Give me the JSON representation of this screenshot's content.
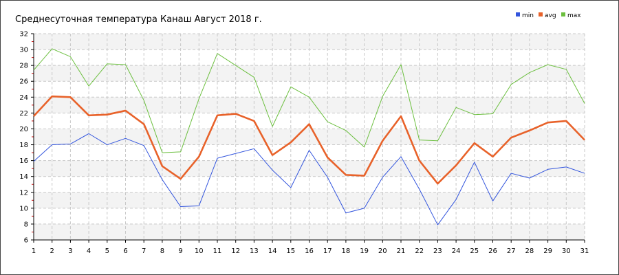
{
  "chart_data": {
    "type": "line",
    "title": "Среднесуточная температура Канаш  Август 2018 г.",
    "xlabel": "",
    "ylabel": "",
    "x": [
      1,
      2,
      3,
      4,
      5,
      6,
      7,
      8,
      9,
      10,
      11,
      12,
      13,
      14,
      15,
      16,
      17,
      18,
      19,
      20,
      21,
      22,
      23,
      24,
      25,
      26,
      27,
      28,
      29,
      30,
      31
    ],
    "xlim": [
      1,
      31
    ],
    "ylim": [
      6,
      32
    ],
    "yticks": [
      6,
      8,
      10,
      12,
      14,
      16,
      18,
      20,
      22,
      24,
      26,
      28,
      30,
      32
    ],
    "grid": true,
    "legend_position": "top-right",
    "series": [
      {
        "name": "min",
        "color": "#3355dd",
        "values": [
          15.9,
          18.0,
          18.1,
          19.4,
          18.0,
          18.8,
          17.9,
          13.6,
          10.2,
          10.3,
          16.3,
          16.9,
          17.5,
          14.8,
          12.6,
          17.3,
          13.9,
          9.4,
          10.0,
          13.9,
          16.5,
          12.4,
          7.9,
          11.1,
          15.8,
          10.9,
          14.4,
          13.8,
          14.9,
          15.2,
          14.4
        ]
      },
      {
        "name": "avg",
        "color": "#e8622a",
        "values": [
          21.6,
          24.1,
          24.0,
          21.7,
          21.8,
          22.3,
          20.6,
          15.3,
          13.7,
          16.5,
          21.7,
          21.9,
          21.0,
          16.7,
          18.3,
          20.6,
          16.4,
          14.2,
          14.1,
          18.5,
          21.6,
          16.0,
          13.1,
          15.4,
          18.2,
          16.5,
          18.9,
          19.8,
          20.8,
          21.0,
          18.6
        ]
      },
      {
        "name": "max",
        "color": "#6cbf3f",
        "values": [
          27.4,
          30.1,
          29.1,
          25.4,
          28.2,
          28.1,
          23.6,
          17.0,
          17.1,
          23.8,
          29.5,
          28.0,
          26.5,
          20.3,
          25.3,
          24.0,
          20.9,
          19.8,
          17.7,
          24.1,
          28.1,
          18.6,
          18.5,
          22.7,
          21.8,
          21.9,
          25.6,
          27.1,
          28.1,
          27.5,
          23.2
        ]
      }
    ]
  }
}
